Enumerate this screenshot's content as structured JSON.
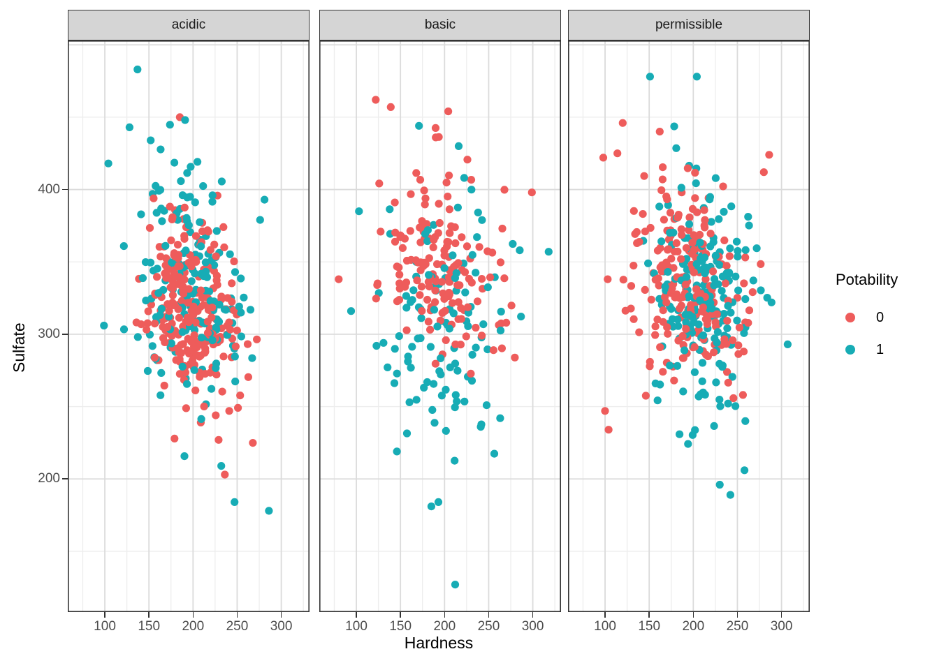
{
  "figure": {
    "x_axis_title": "Hardness",
    "y_axis_title": "Sulfate"
  },
  "legend": {
    "title": "Potability",
    "items": [
      {
        "label": "0",
        "color": "#ee5c5b"
      },
      {
        "label": "1",
        "color": "#17acb5"
      }
    ]
  },
  "style_colors": {
    "grid_major": "#dbdbdb",
    "grid_minor": "#ededed",
    "panel_border": "#333333",
    "strip_fill": "#d5d5d5"
  },
  "chart_data": {
    "type": "scatter",
    "title": "",
    "xlabel": "Hardness",
    "ylabel": "Sulfate",
    "legend_title": "Potability",
    "legend_position": "right",
    "grid": true,
    "xlim": [
      58,
      332
    ],
    "ylim": [
      108,
      503
    ],
    "x_ticks": [
      100,
      150,
      200,
      250,
      300
    ],
    "x_minor_ticks": [
      75,
      125,
      175,
      225,
      275,
      325
    ],
    "y_ticks": [
      200,
      300,
      400
    ],
    "y_grid_major": [
      200,
      300,
      400,
      500
    ],
    "y_minor_ticks": [
      150,
      250,
      350,
      450
    ],
    "series": [
      {
        "name": "0",
        "color": "#ee5c5b"
      },
      {
        "name": "1",
        "color": "#17acb5"
      }
    ],
    "facets": [
      {
        "label": "acidic",
        "clusters": [
          {
            "potability": "0",
            "n": 245,
            "mean": [
              197,
              320
            ],
            "sd": [
              27,
              30
            ],
            "tilt": -0.35
          },
          {
            "potability": "1",
            "n": 165,
            "mean": [
              192,
              332
            ],
            "sd": [
              33,
              40
            ],
            "tilt": -0.25
          }
        ],
        "outlier_points": [
          {
            "x": 137,
            "y": 483,
            "p": "1"
          },
          {
            "x": 286,
            "y": 178,
            "p": "1"
          },
          {
            "x": 247,
            "y": 184,
            "p": "1"
          },
          {
            "x": 232,
            "y": 209,
            "p": "1"
          },
          {
            "x": 236,
            "y": 203,
            "p": "0"
          },
          {
            "x": 229,
            "y": 227,
            "p": "0"
          },
          {
            "x": 241,
            "y": 247,
            "p": "0"
          },
          {
            "x": 185,
            "y": 450,
            "p": "0"
          },
          {
            "x": 191,
            "y": 448,
            "p": "1"
          },
          {
            "x": 128,
            "y": 443,
            "p": "1"
          },
          {
            "x": 152,
            "y": 434,
            "p": "1"
          },
          {
            "x": 104,
            "y": 418,
            "p": "1"
          },
          {
            "x": 99,
            "y": 306,
            "p": "1"
          },
          {
            "x": 281,
            "y": 393,
            "p": "1"
          },
          {
            "x": 276,
            "y": 379,
            "p": "1"
          }
        ]
      },
      {
        "label": "basic",
        "clusters": [
          {
            "potability": "0",
            "n": 155,
            "mean": [
              197,
              341
            ],
            "sd": [
              34,
              33
            ],
            "tilt": -0.15
          },
          {
            "potability": "1",
            "n": 105,
            "mean": [
              204,
              308
            ],
            "sd": [
              36,
              46
            ],
            "tilt": -0.1
          }
        ],
        "outlier_points": [
          {
            "x": 212,
            "y": 127,
            "p": "1"
          },
          {
            "x": 185,
            "y": 181,
            "p": "1"
          },
          {
            "x": 122,
            "y": 462,
            "p": "0"
          },
          {
            "x": 139,
            "y": 457,
            "p": "0"
          },
          {
            "x": 171,
            "y": 444,
            "p": "1"
          },
          {
            "x": 190,
            "y": 436,
            "p": "0"
          },
          {
            "x": 216,
            "y": 430,
            "p": "1"
          },
          {
            "x": 299,
            "y": 398,
            "p": "0"
          },
          {
            "x": 318,
            "y": 357,
            "p": "1"
          },
          {
            "x": 146,
            "y": 219,
            "p": "1"
          },
          {
            "x": 193,
            "y": 184,
            "p": "1"
          },
          {
            "x": 94,
            "y": 316,
            "p": "1"
          },
          {
            "x": 80,
            "y": 338,
            "p": "0"
          },
          {
            "x": 103,
            "y": 385,
            "p": "1"
          },
          {
            "x": 263,
            "y": 242,
            "p": "1"
          },
          {
            "x": 241,
            "y": 236,
            "p": "1"
          }
        ]
      },
      {
        "label": "permissible",
        "clusters": [
          {
            "potability": "0",
            "n": 215,
            "mean": [
              195,
              334
            ],
            "sd": [
              31,
              35
            ],
            "tilt": -0.15
          },
          {
            "potability": "1",
            "n": 195,
            "mean": [
              209,
              324
            ],
            "sd": [
              27,
              41
            ],
            "tilt": -0.1
          }
        ],
        "outlier_points": [
          {
            "x": 151,
            "y": 478,
            "p": "1"
          },
          {
            "x": 204,
            "y": 478,
            "p": "1"
          },
          {
            "x": 120,
            "y": 446,
            "p": "0"
          },
          {
            "x": 258,
            "y": 206,
            "p": "1"
          },
          {
            "x": 242,
            "y": 189,
            "p": "1"
          },
          {
            "x": 230,
            "y": 196,
            "p": "1"
          },
          {
            "x": 307,
            "y": 293,
            "p": "1"
          },
          {
            "x": 100,
            "y": 247,
            "p": "0"
          },
          {
            "x": 104,
            "y": 234,
            "p": "0"
          },
          {
            "x": 259,
            "y": 240,
            "p": "1"
          },
          {
            "x": 286,
            "y": 424,
            "p": "0"
          },
          {
            "x": 280,
            "y": 412,
            "p": "0"
          },
          {
            "x": 114,
            "y": 425,
            "p": "0"
          },
          {
            "x": 98,
            "y": 422,
            "p": "0"
          },
          {
            "x": 162,
            "y": 440,
            "p": "0"
          }
        ]
      }
    ]
  }
}
